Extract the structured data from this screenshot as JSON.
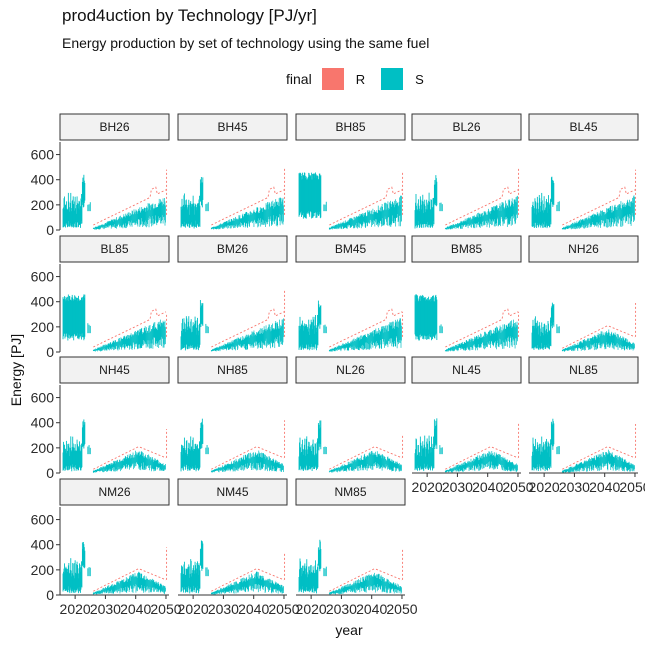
{
  "chart_data": {
    "type": "line",
    "title": "prod4uction by Technology [PJ/yr]",
    "subtitle": "Energy production by set of technology using the same fuel",
    "xlabel": "year",
    "ylabel": "Energy [PJ]",
    "xlim": [
      2015,
      2051
    ],
    "ylim": [
      0,
      700
    ],
    "xticks": [
      2020,
      2030,
      2040,
      2050
    ],
    "yticks": [
      0,
      200,
      400,
      600
    ],
    "xtick_labels": [
      "2020",
      "2030",
      "2040",
      "2050"
    ],
    "ytick_labels": [
      "0",
      "200",
      "400",
      "600"
    ],
    "legend": {
      "title": "final",
      "position": "top",
      "entries": [
        {
          "label": "R",
          "color": "#F8766D"
        },
        {
          "label": "S",
          "color": "#00BFC4"
        }
      ]
    },
    "colors": {
      "R": "#F8766D",
      "S": "#00BFC4"
    },
    "facets": [
      "BH26",
      "BH45",
      "BH85",
      "BL26",
      "BL45",
      "BL85",
      "BM26",
      "BM45",
      "BM85",
      "NH26",
      "NH45",
      "NH85",
      "NL26",
      "NL45",
      "NL85",
      "NM26",
      "NM45",
      "NM85"
    ],
    "facet_params": {
      "BH26": {
        "early": "tall",
        "mode": "B",
        "r_end": 480
      },
      "BH45": {
        "early": "tall",
        "mode": "B",
        "r_end": 490
      },
      "BH85": {
        "early": "box",
        "mode": "B",
        "r_end": 470
      },
      "BL26": {
        "early": "tall",
        "mode": "B",
        "r_end": 500
      },
      "BL45": {
        "early": "tall",
        "mode": "B",
        "r_end": 480
      },
      "BL85": {
        "early": "box",
        "mode": "B",
        "r_end": 310
      },
      "BM26": {
        "early": "tall",
        "mode": "B",
        "r_end": 490
      },
      "BM45": {
        "early": "tall",
        "mode": "B",
        "r_end": 320
      },
      "BM85": {
        "early": "box",
        "mode": "B",
        "r_end": 320
      },
      "NH26": {
        "early": "tall",
        "mode": "N",
        "r_end": 390
      },
      "NH45": {
        "early": "tall",
        "mode": "N",
        "r_end": 350
      },
      "NH85": {
        "early": "tall",
        "mode": "N",
        "r_end": 420
      },
      "NL26": {
        "early": "tall",
        "mode": "N",
        "r_end": 300
      },
      "NL45": {
        "early": "tall",
        "mode": "N",
        "r_end": 400
      },
      "NL85": {
        "early": "tall",
        "mode": "N",
        "r_end": 390
      },
      "NM26": {
        "early": "tall",
        "mode": "N",
        "r_end": 380
      },
      "NM45": {
        "early": "tall",
        "mode": "N",
        "r_end": 340
      },
      "NM85": {
        "early": "tall",
        "mode": "N",
        "r_end": 370
      }
    }
  }
}
